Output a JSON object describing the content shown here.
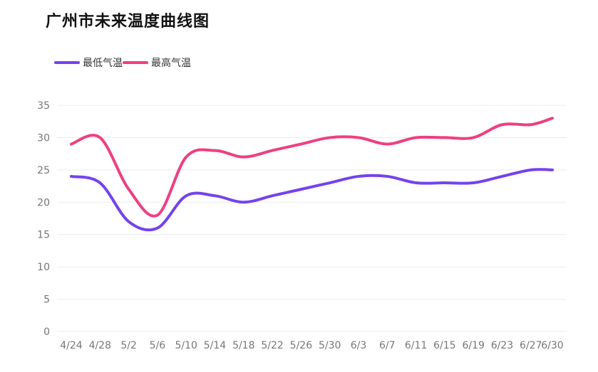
{
  "page": {
    "title": "广州市未来温度曲线图"
  },
  "colors": {
    "low": "#7443ec",
    "high": "#ee3f81",
    "grid": "#ececec",
    "axis_text": "#777777"
  },
  "chart_data": {
    "type": "line",
    "title": "广州市未来温度曲线图",
    "legend_position": "top-left",
    "grid": true,
    "ylim": [
      0,
      35
    ],
    "yticks": [
      0,
      5,
      10,
      15,
      20,
      25,
      30,
      35
    ],
    "xlim": [
      "4/24",
      "6/30"
    ],
    "xtick_labels": [
      "4/24",
      "4/28",
      "5/2",
      "5/6",
      "5/10",
      "5/14",
      "5/18",
      "5/22",
      "5/26",
      "5/30",
      "6/3",
      "6/7",
      "6/11",
      "6/15",
      "6/19",
      "6/23",
      "6/27",
      "6/30"
    ],
    "series": [
      {
        "name": "最低气温",
        "x": [
          "4/24",
          "4/28",
          "5/2",
          "5/6",
          "5/10",
          "5/14",
          "5/18",
          "5/22",
          "5/26",
          "5/30",
          "6/3",
          "6/7",
          "6/11",
          "6/15",
          "6/19",
          "6/23",
          "6/27",
          "6/30"
        ],
        "values": [
          24,
          23,
          17,
          16,
          21,
          21,
          20,
          21,
          22,
          23,
          24,
          24,
          23,
          23,
          23,
          24,
          25,
          25
        ]
      },
      {
        "name": "最高气温",
        "x": [
          "4/24",
          "4/28",
          "5/2",
          "5/6",
          "5/10",
          "5/14",
          "5/18",
          "5/22",
          "5/26",
          "5/30",
          "6/3",
          "6/7",
          "6/11",
          "6/15",
          "6/19",
          "6/23",
          "6/27",
          "6/30"
        ],
        "values": [
          29,
          30,
          22,
          18,
          27,
          28,
          27,
          28,
          29,
          30,
          30,
          29,
          30,
          30,
          30,
          32,
          32,
          33
        ]
      }
    ]
  }
}
